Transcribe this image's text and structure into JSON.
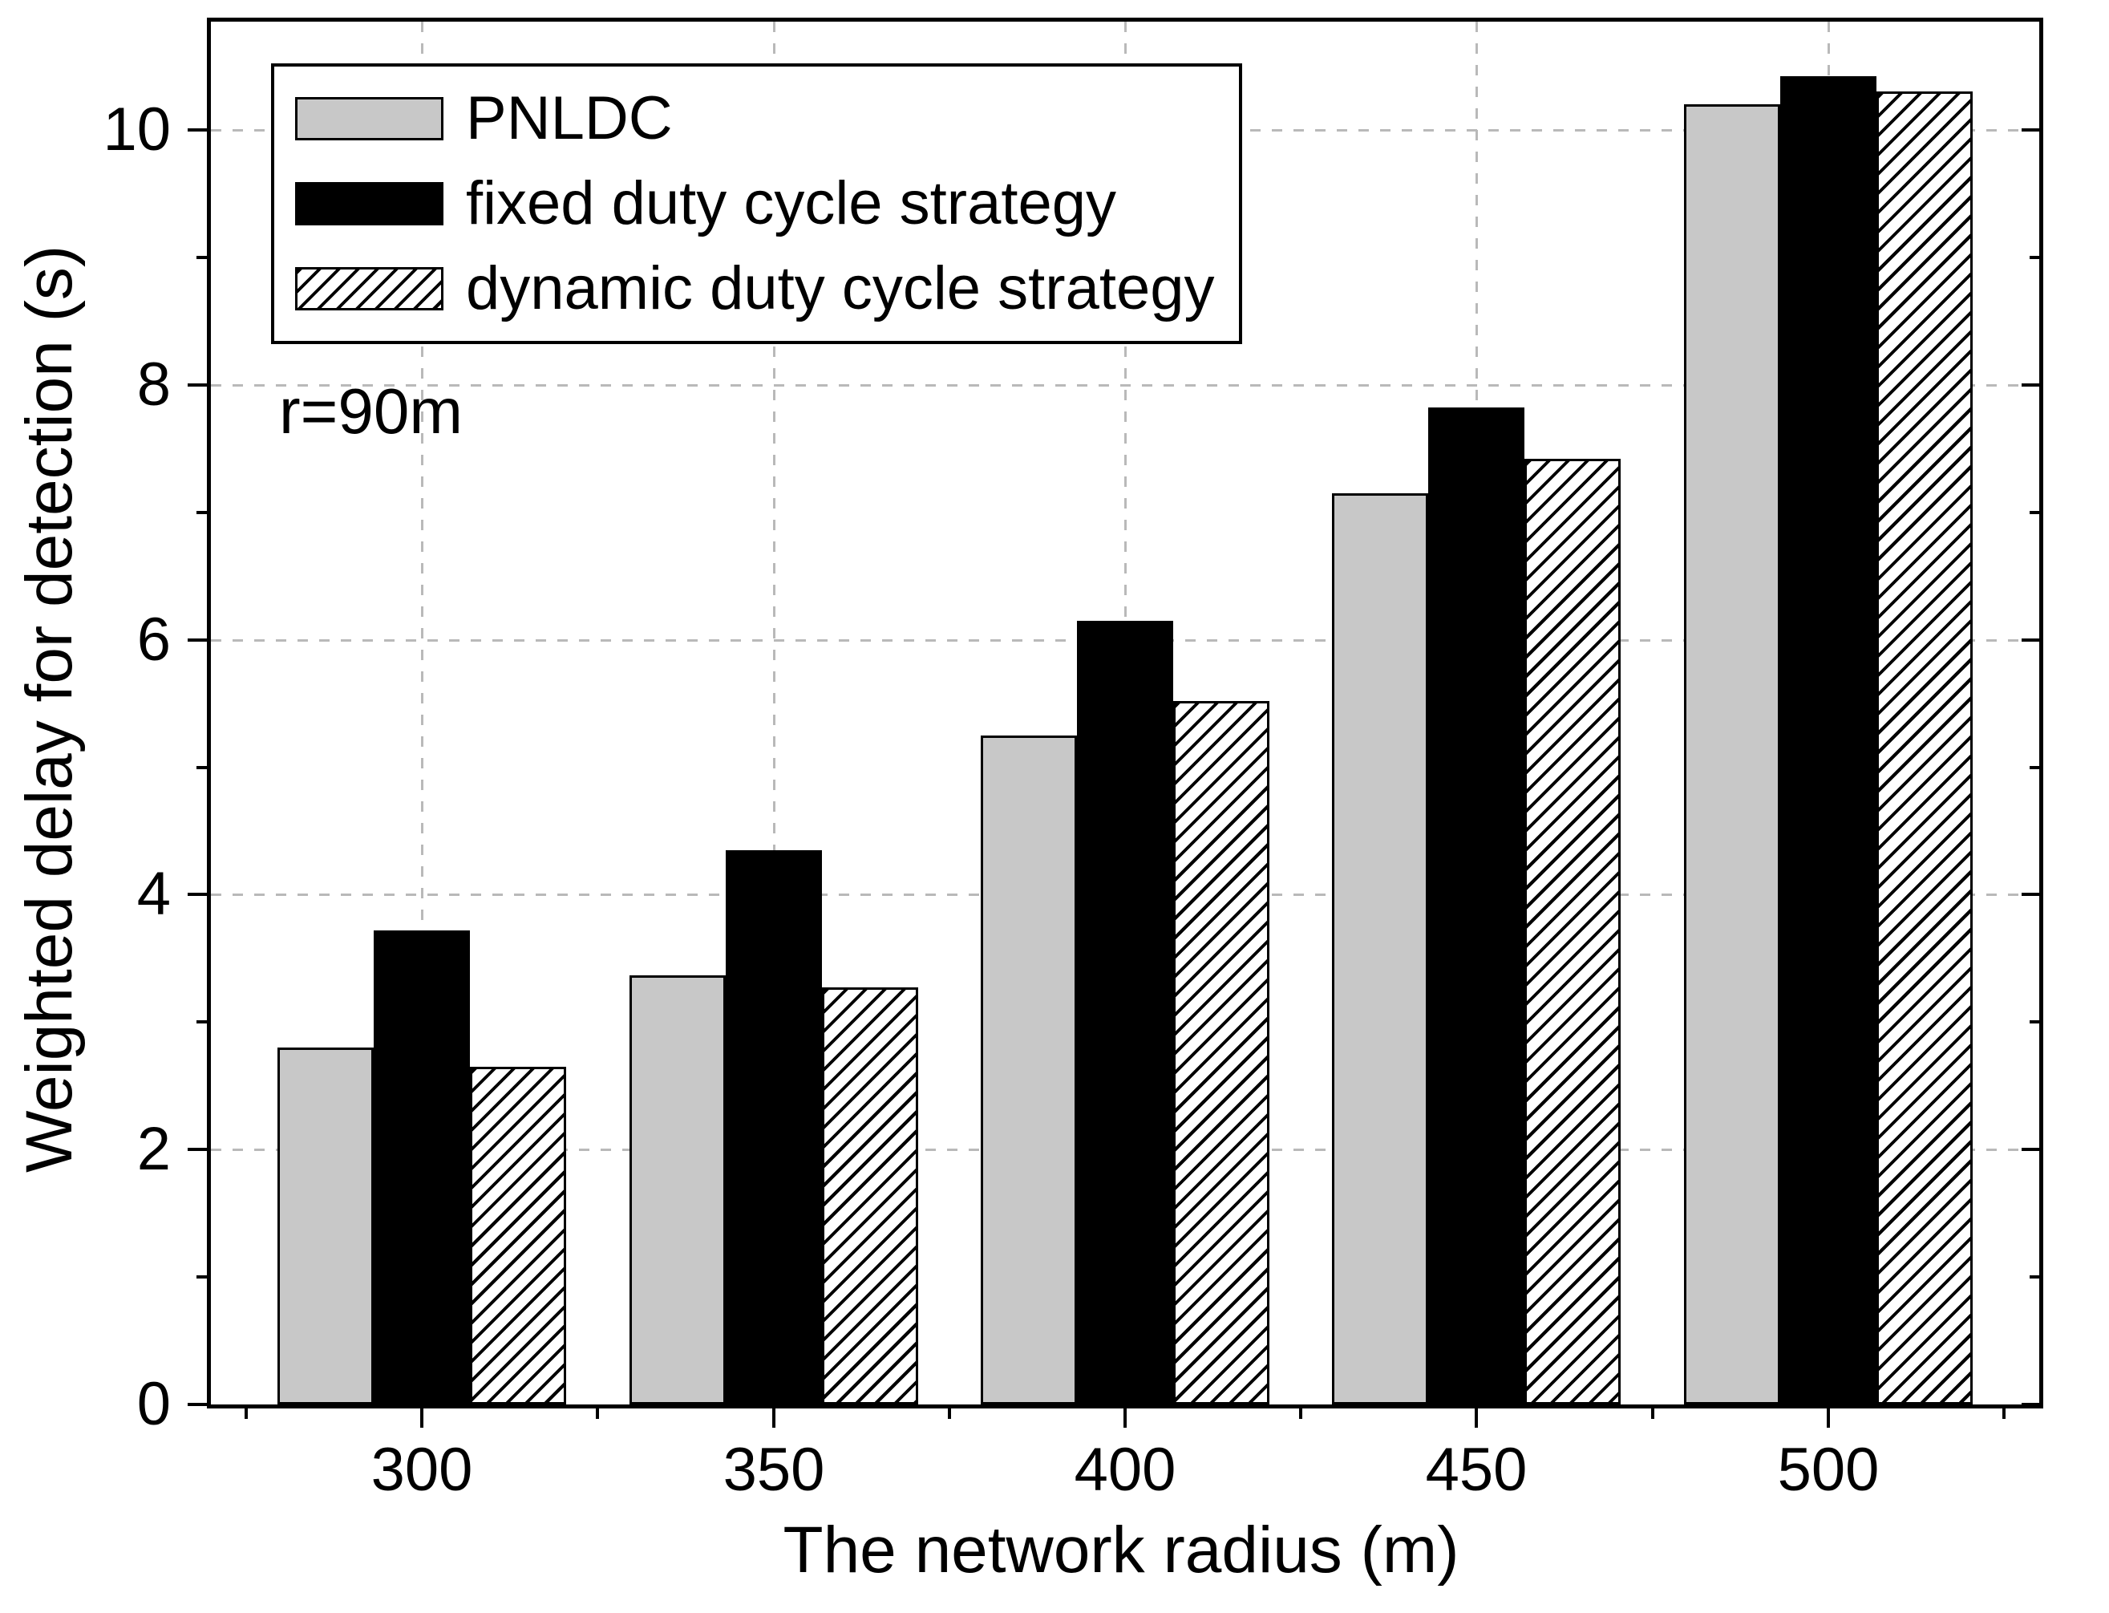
{
  "chart_data": {
    "type": "bar",
    "title": "",
    "xlabel": "The network radius (m)",
    "ylabel": "Weighted delay for detection (s)",
    "annotation": "r=90m",
    "categories": [
      "300",
      "350",
      "400",
      "450",
      "500"
    ],
    "series": [
      {
        "name": "PNLDC",
        "style": "gray",
        "values": [
          2.8,
          3.37,
          5.25,
          7.15,
          10.2
        ]
      },
      {
        "name": "fixed duty cycle strategy",
        "style": "black",
        "values": [
          3.72,
          4.35,
          6.15,
          7.82,
          10.42
        ]
      },
      {
        "name": "dynamic duty cycle strategy",
        "style": "hatch",
        "values": [
          2.65,
          3.27,
          5.52,
          7.42,
          10.3
        ]
      }
    ],
    "yticks": [
      0,
      2,
      4,
      6,
      8,
      10
    ],
    "ylim": [
      0,
      10.85
    ],
    "xlim": [
      270,
      530
    ],
    "grid": "dashed",
    "legend_position": "top-left",
    "colors": {
      "bar_gray": "#c8c8c8",
      "bar_black": "#000000",
      "hatch_bg": "#ffffff",
      "axis": "#000000",
      "grid": "#b9b9b9"
    }
  }
}
